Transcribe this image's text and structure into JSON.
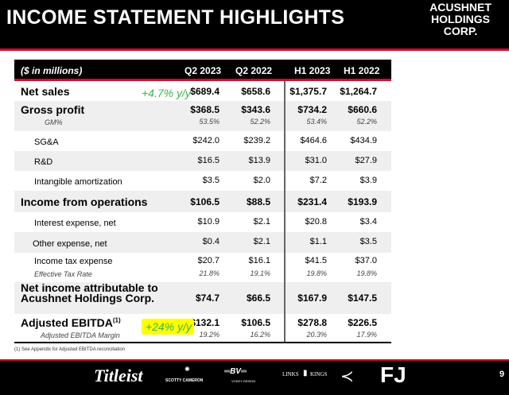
{
  "title": "INCOME STATEMENT HIGHLIGHTS",
  "logo": [
    "ACUSHNET",
    "HOLDINGS",
    "CORP."
  ],
  "header": {
    "unit": "($ in millions)",
    "columns": [
      "Q2 2023",
      "Q2 2022",
      "H1 2023",
      "H1 2022"
    ]
  },
  "rows": [
    {
      "label": "Net sales",
      "values": [
        "$689.4",
        "$658.6",
        "$1,375.7",
        "$1,264.7"
      ]
    },
    {
      "label": "Gross profit",
      "values": [
        "$368.5",
        "$343.6",
        "$734.2",
        "$660.6"
      ],
      "sub_label": "GM%",
      "sub_values": [
        "53.5%",
        "52.2%",
        "53.4%",
        "52.2%"
      ]
    },
    {
      "label": "SG&A",
      "values": [
        "$242.0",
        "$239.2",
        "$464.6",
        "$434.9"
      ]
    },
    {
      "label": "R&D",
      "values": [
        "$16.5",
        "$13.9",
        "$31.0",
        "$27.9"
      ]
    },
    {
      "label": "Intangible amortization",
      "values": [
        "$3.5",
        "$2.0",
        "$7.2",
        "$3.9"
      ]
    },
    {
      "label": "Income from operations",
      "values": [
        "$106.5",
        "$88.5",
        "$231.4",
        "$193.9"
      ]
    },
    {
      "label": "Interest expense, net",
      "values": [
        "$10.9",
        "$2.1",
        "$20.8",
        "$3.4"
      ]
    },
    {
      "label": "Other expense, net",
      "values": [
        "$0.4",
        "$2.1",
        "$1.1",
        "$3.5"
      ]
    },
    {
      "label": "Income tax expense",
      "values": [
        "$20.7",
        "$16.1",
        "$41.5",
        "$37.0"
      ],
      "sub_label": "Effective Tax Rate",
      "sub_values": [
        "21.8%",
        "19.1%",
        "19.8%",
        "19.8%"
      ]
    },
    {
      "label": "Net income attributable to Acushnet",
      "label2": "Holdings Corp.",
      "values": [
        "$74.7",
        "$66.5",
        "$167.9",
        "$147.5"
      ]
    },
    {
      "label": "Adjusted EBITDA",
      "sup": "(1)",
      "values": [
        "$132.1",
        "$106.5",
        "$278.8",
        "$226.5"
      ],
      "sub_label": "Adjusted EBITDA Margin",
      "sub_values": [
        "19.2%",
        "16.2%",
        "20.3%",
        "17.9%"
      ]
    }
  ],
  "annotations": {
    "net_sales": "+4.7% y/y",
    "ebitda": "+24% y/y",
    "color": "#3cb44b",
    "highlight": "#ffff00"
  },
  "footnote": "(1) See Appendix for Adjusted EBITDA reconciliation",
  "brands": [
    "Titleist",
    "SCOTTY CAMERON",
    "VOKEY DESIGN",
    "LINKS",
    "KINGS",
    "FJ"
  ],
  "page_number": "9",
  "colors": {
    "accent": "#c8102e",
    "header_bg": "#000000"
  }
}
